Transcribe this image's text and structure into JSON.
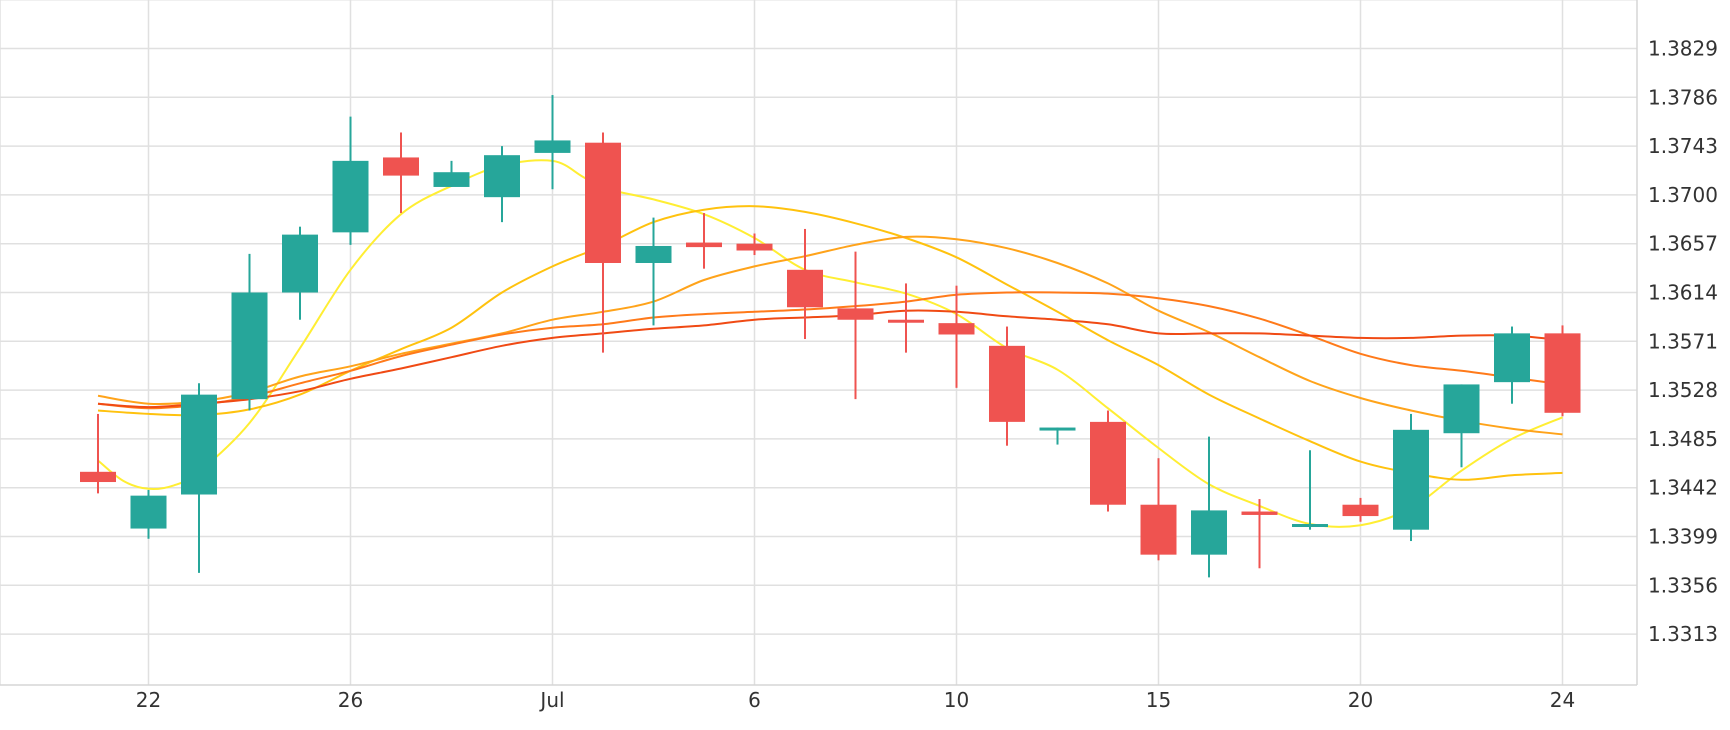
{
  "chart_data": {
    "type": "candlestick",
    "title": "",
    "xlabel": "",
    "ylabel": "",
    "ylim": [
      1.327,
      1.3872
    ],
    "grid": true,
    "legend": "none",
    "x_ticks": [
      {
        "label": "22",
        "index": 1
      },
      {
        "label": "26",
        "index": 5
      },
      {
        "label": "Jul",
        "index": 9
      },
      {
        "label": "6",
        "index": 13
      },
      {
        "label": "10",
        "index": 17
      },
      {
        "label": "15",
        "index": 21
      },
      {
        "label": "20",
        "index": 25
      },
      {
        "label": "24",
        "index": 29
      }
    ],
    "y_ticks": [
      "1.3829",
      "1.3786",
      "1.3743",
      "1.3700",
      "1.3657",
      "1.3614",
      "1.3571",
      "1.3528",
      "1.3485",
      "1.3442",
      "1.3399",
      "1.3356",
      "1.3313"
    ],
    "colors": {
      "up": "#26a69a",
      "down": "#ef5350"
    },
    "candles": [
      {
        "o": 1.3456,
        "h": 1.3507,
        "l": 1.3437,
        "c": 1.3447
      },
      {
        "o": 1.3406,
        "h": 1.344,
        "l": 1.3397,
        "c": 1.3435
      },
      {
        "o": 1.3436,
        "h": 1.3534,
        "l": 1.3367,
        "c": 1.3524
      },
      {
        "o": 1.352,
        "h": 1.3648,
        "l": 1.351,
        "c": 1.3614
      },
      {
        "o": 1.3614,
        "h": 1.3672,
        "l": 1.359,
        "c": 1.3665
      },
      {
        "o": 1.3667,
        "h": 1.3769,
        "l": 1.3656,
        "c": 1.373
      },
      {
        "o": 1.3733,
        "h": 1.3755,
        "l": 1.3684,
        "c": 1.3717
      },
      {
        "o": 1.3707,
        "h": 1.373,
        "l": 1.3707,
        "c": 1.372
      },
      {
        "o": 1.3698,
        "h": 1.3743,
        "l": 1.3676,
        "c": 1.3735
      },
      {
        "o": 1.3737,
        "h": 1.3788,
        "l": 1.3705,
        "c": 1.3748
      },
      {
        "o": 1.3746,
        "h": 1.3755,
        "l": 1.3561,
        "c": 1.364
      },
      {
        "o": 1.364,
        "h": 1.368,
        "l": 1.3585,
        "c": 1.3655
      },
      {
        "o": 1.3658,
        "h": 1.3684,
        "l": 1.3635,
        "c": 1.3654
      },
      {
        "o": 1.3657,
        "h": 1.3666,
        "l": 1.3647,
        "c": 1.3651
      },
      {
        "o": 1.3634,
        "h": 1.367,
        "l": 1.3573,
        "c": 1.3601
      },
      {
        "o": 1.36,
        "h": 1.365,
        "l": 1.352,
        "c": 1.359
      },
      {
        "o": 1.359,
        "h": 1.3622,
        "l": 1.3561,
        "c": 1.3589
      },
      {
        "o": 1.3587,
        "h": 1.362,
        "l": 1.353,
        "c": 1.3577
      },
      {
        "o": 1.3567,
        "h": 1.3584,
        "l": 1.3479,
        "c": 1.35
      },
      {
        "o": 1.3493,
        "h": 1.3495,
        "l": 1.348,
        "c": 1.3495
      },
      {
        "o": 1.35,
        "h": 1.351,
        "l": 1.3421,
        "c": 1.3427
      },
      {
        "o": 1.3427,
        "h": 1.3468,
        "l": 1.3378,
        "c": 1.3383
      },
      {
        "o": 1.3383,
        "h": 1.3487,
        "l": 1.3363,
        "c": 1.3422
      },
      {
        "o": 1.3421,
        "h": 1.3432,
        "l": 1.3371,
        "c": 1.3418
      },
      {
        "o": 1.341,
        "h": 1.3475,
        "l": 1.3405,
        "c": 1.341
      },
      {
        "o": 1.3427,
        "h": 1.3433,
        "l": 1.3412,
        "c": 1.3417
      },
      {
        "o": 1.3405,
        "h": 1.3507,
        "l": 1.3395,
        "c": 1.3493
      },
      {
        "o": 1.349,
        "h": 1.3533,
        "l": 1.346,
        "c": 1.3533
      },
      {
        "o": 1.3535,
        "h": 1.3584,
        "l": 1.3516,
        "c": 1.3578
      },
      {
        "o": 1.3578,
        "h": 1.3585,
        "l": 1.3505,
        "c": 1.3508
      }
    ],
    "moving_averages": [
      {
        "color": "#ffee33",
        "values": [
          [
            0,
            1.3466
          ],
          [
            0.5,
            1.3448
          ],
          [
            1,
            1.3441
          ],
          [
            1.5,
            1.3444
          ],
          [
            2,
            1.3456
          ],
          [
            3,
            1.3499
          ],
          [
            4,
            1.3565
          ],
          [
            5,
            1.3634
          ],
          [
            6,
            1.3683
          ],
          [
            7,
            1.3708
          ],
          [
            8,
            1.3726
          ],
          [
            9,
            1.373
          ],
          [
            9.6,
            1.3716
          ],
          [
            10,
            1.3706
          ],
          [
            11,
            1.3696
          ],
          [
            12,
            1.3683
          ],
          [
            13,
            1.3662
          ],
          [
            14,
            1.3634
          ],
          [
            15,
            1.3623
          ],
          [
            16,
            1.3613
          ],
          [
            17,
            1.3595
          ],
          [
            18,
            1.3565
          ],
          [
            19,
            1.3546
          ],
          [
            20,
            1.3512
          ],
          [
            21,
            1.3477
          ],
          [
            22,
            1.3445
          ],
          [
            23,
            1.3426
          ],
          [
            24,
            1.341
          ],
          [
            25,
            1.3409
          ],
          [
            26,
            1.3424
          ],
          [
            27,
            1.3457
          ],
          [
            28,
            1.3485
          ],
          [
            29,
            1.3504
          ]
        ]
      },
      {
        "color": "#ffc20e",
        "values": [
          [
            0,
            1.351
          ],
          [
            1,
            1.3507
          ],
          [
            2,
            1.3506
          ],
          [
            3,
            1.3511
          ],
          [
            4,
            1.3524
          ],
          [
            5,
            1.3545
          ],
          [
            6,
            1.3564
          ],
          [
            7,
            1.3583
          ],
          [
            8,
            1.3614
          ],
          [
            9,
            1.3637
          ],
          [
            10,
            1.3655
          ],
          [
            11,
            1.3676
          ],
          [
            12,
            1.3687
          ],
          [
            13,
            1.369
          ],
          [
            14,
            1.3685
          ],
          [
            15,
            1.3675
          ],
          [
            16,
            1.3662
          ],
          [
            17,
            1.3645
          ],
          [
            18,
            1.3621
          ],
          [
            19,
            1.3597
          ],
          [
            20,
            1.3572
          ],
          [
            21,
            1.355
          ],
          [
            22,
            1.3524
          ],
          [
            23,
            1.3503
          ],
          [
            24,
            1.3483
          ],
          [
            25,
            1.3465
          ],
          [
            26,
            1.3455
          ],
          [
            27,
            1.3449
          ],
          [
            28,
            1.3453
          ],
          [
            29,
            1.3455
          ]
        ]
      },
      {
        "color": "#ffa31a",
        "values": [
          [
            0,
            1.3523
          ],
          [
            1,
            1.3516
          ],
          [
            2,
            1.3518
          ],
          [
            3,
            1.3526
          ],
          [
            4,
            1.354
          ],
          [
            5,
            1.3549
          ],
          [
            6,
            1.356
          ],
          [
            7,
            1.3569
          ],
          [
            8,
            1.3578
          ],
          [
            9,
            1.359
          ],
          [
            10,
            1.3597
          ],
          [
            11,
            1.3606
          ],
          [
            12,
            1.3625
          ],
          [
            13,
            1.3637
          ],
          [
            14,
            1.3646
          ],
          [
            15,
            1.3656
          ],
          [
            16,
            1.3663
          ],
          [
            17,
            1.3661
          ],
          [
            18,
            1.3653
          ],
          [
            19,
            1.364
          ],
          [
            20,
            1.3622
          ],
          [
            21,
            1.3598
          ],
          [
            22,
            1.3579
          ],
          [
            23,
            1.3557
          ],
          [
            24,
            1.3536
          ],
          [
            25,
            1.3521
          ],
          [
            26,
            1.351
          ],
          [
            27,
            1.3501
          ],
          [
            28,
            1.3494
          ],
          [
            29,
            1.3489
          ]
        ]
      },
      {
        "color": "#ff7a1a",
        "values": [
          [
            0,
            1.3516
          ],
          [
            1,
            1.3512
          ],
          [
            2,
            1.3515
          ],
          [
            3,
            1.3522
          ],
          [
            4,
            1.3534
          ],
          [
            5,
            1.3545
          ],
          [
            6,
            1.3558
          ],
          [
            7,
            1.3568
          ],
          [
            8,
            1.3577
          ],
          [
            9,
            1.3583
          ],
          [
            10,
            1.3586
          ],
          [
            11,
            1.3592
          ],
          [
            12,
            1.3595
          ],
          [
            13,
            1.3597
          ],
          [
            14,
            1.3599
          ],
          [
            15,
            1.3602
          ],
          [
            16,
            1.3606
          ],
          [
            17,
            1.3612
          ],
          [
            18,
            1.3614
          ],
          [
            19,
            1.3614
          ],
          [
            20,
            1.3613
          ],
          [
            21,
            1.3609
          ],
          [
            22,
            1.3602
          ],
          [
            23,
            1.3591
          ],
          [
            24,
            1.3576
          ],
          [
            25,
            1.356
          ],
          [
            26,
            1.355
          ],
          [
            27,
            1.3545
          ],
          [
            28,
            1.3539
          ],
          [
            29,
            1.3533
          ]
        ]
      },
      {
        "color": "#f04a14",
        "values": [
          [
            0,
            1.3516
          ],
          [
            1,
            1.3513
          ],
          [
            2,
            1.3516
          ],
          [
            3,
            1.352
          ],
          [
            4,
            1.3527
          ],
          [
            5,
            1.3538
          ],
          [
            6,
            1.3547
          ],
          [
            7,
            1.3557
          ],
          [
            8,
            1.3567
          ],
          [
            9,
            1.3574
          ],
          [
            10,
            1.3578
          ],
          [
            11,
            1.3582
          ],
          [
            12,
            1.3585
          ],
          [
            13,
            1.359
          ],
          [
            14,
            1.3592
          ],
          [
            15,
            1.3594
          ],
          [
            16,
            1.3598
          ],
          [
            17,
            1.3597
          ],
          [
            18,
            1.3593
          ],
          [
            19,
            1.359
          ],
          [
            20,
            1.3586
          ],
          [
            21,
            1.3578
          ],
          [
            22,
            1.3578
          ],
          [
            23,
            1.3578
          ],
          [
            24,
            1.3576
          ],
          [
            25,
            1.3574
          ],
          [
            26,
            1.3574
          ],
          [
            27,
            1.3576
          ],
          [
            28,
            1.3576
          ],
          [
            29,
            1.3572
          ]
        ]
      }
    ]
  }
}
